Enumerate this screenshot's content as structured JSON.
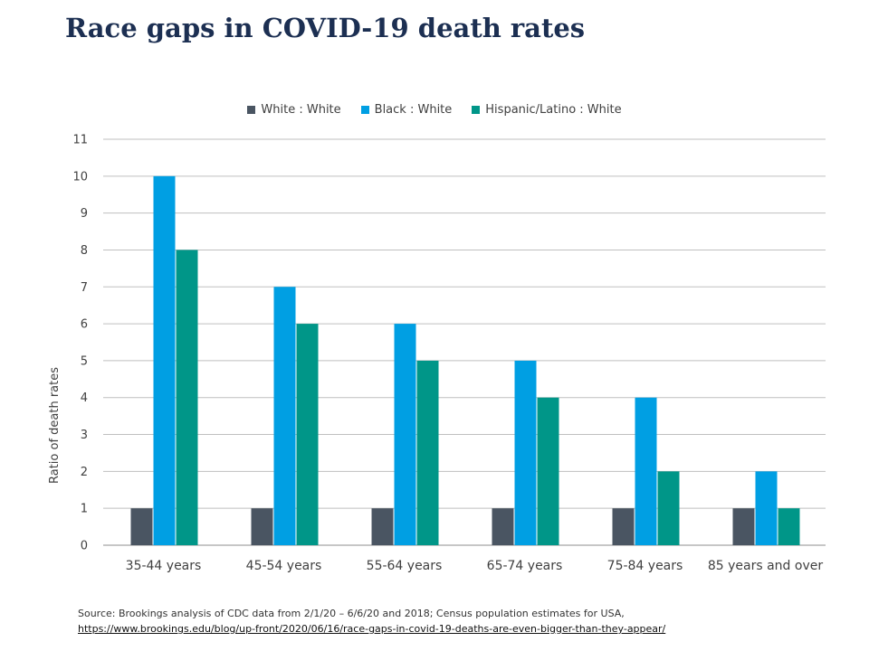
{
  "title": "Race gaps in COVID-19 death rates",
  "source": {
    "text": "Source: Brookings analysis of CDC data from 2/1/20 – 6/6/20 and 2018; Census population estimates for USA,",
    "link": "https://www.brookings.edu/blog/up-front/2020/06/16/race-gaps-in-covid-19-deaths-are-even-bigger-than-they-appear/"
  },
  "chart_data": {
    "type": "bar",
    "categories": [
      "35-44 years",
      "45-54 years",
      "55-64 years",
      "65-74 years",
      "75-84 years",
      "85 years and over"
    ],
    "series": [
      {
        "name": "White : White",
        "color": "#4a5562",
        "values": [
          1,
          1,
          1,
          1,
          1,
          1
        ]
      },
      {
        "name": "Black : White",
        "color": "#009fe3",
        "values": [
          10,
          7,
          6,
          5,
          4,
          2
        ]
      },
      {
        "name": "Hispanic/Latino : White",
        "color": "#009688",
        "values": [
          8,
          6,
          5,
          4,
          2,
          1
        ]
      }
    ],
    "ylabel": "Ratio of death rates",
    "xlabel": "",
    "ylim": [
      0,
      11
    ],
    "yticks": [
      0,
      1,
      2,
      3,
      4,
      5,
      6,
      7,
      8,
      9,
      10,
      11
    ],
    "grid": true,
    "legend": "top-center"
  }
}
